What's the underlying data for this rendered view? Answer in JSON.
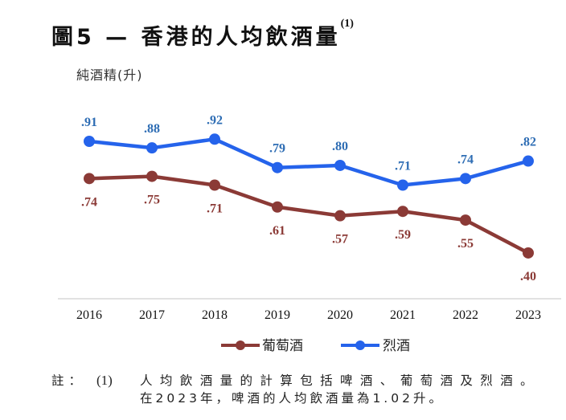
{
  "header": {
    "title": "圖5 — 香港的人均飲酒量",
    "title_note_marker": "(1)"
  },
  "chart_data": {
    "type": "line",
    "title": "圖5 — 香港的人均飲酒量(1)",
    "xlabel": "",
    "ylabel": "純酒精(升)",
    "categories": [
      "2016",
      "2017",
      "2018",
      "2019",
      "2020",
      "2021",
      "2022",
      "2023"
    ],
    "series": [
      {
        "name": "葡萄酒",
        "color": "#8B3A36",
        "values": [
          0.74,
          0.75,
          0.71,
          0.61,
          0.57,
          0.59,
          0.55,
          0.4
        ],
        "labels": [
          ".74",
          ".75",
          ".71",
          ".61",
          ".57",
          ".59",
          ".55",
          ".40"
        ],
        "label_position": "below"
      },
      {
        "name": "烈酒",
        "color": "#2563EB",
        "label_color": "#2E6DB4",
        "values": [
          0.91,
          0.88,
          0.92,
          0.79,
          0.8,
          0.71,
          0.74,
          0.82
        ],
        "labels": [
          ".91",
          ".88",
          ".92",
          ".79",
          ".80",
          ".71",
          ".74",
          ".82"
        ],
        "label_position": "above"
      }
    ],
    "ylim": [
      0.25,
      1.0
    ],
    "grid": false,
    "legend_position": "bottom-center",
    "axis_color": "#d9d9d9"
  },
  "notes": {
    "label": "註：",
    "number": "(1)",
    "line1": "人均飲酒量的計算包括啤酒、葡萄酒及烈酒。",
    "line2": "在2023年，啤酒的人均飲酒量為1.02升。"
  }
}
